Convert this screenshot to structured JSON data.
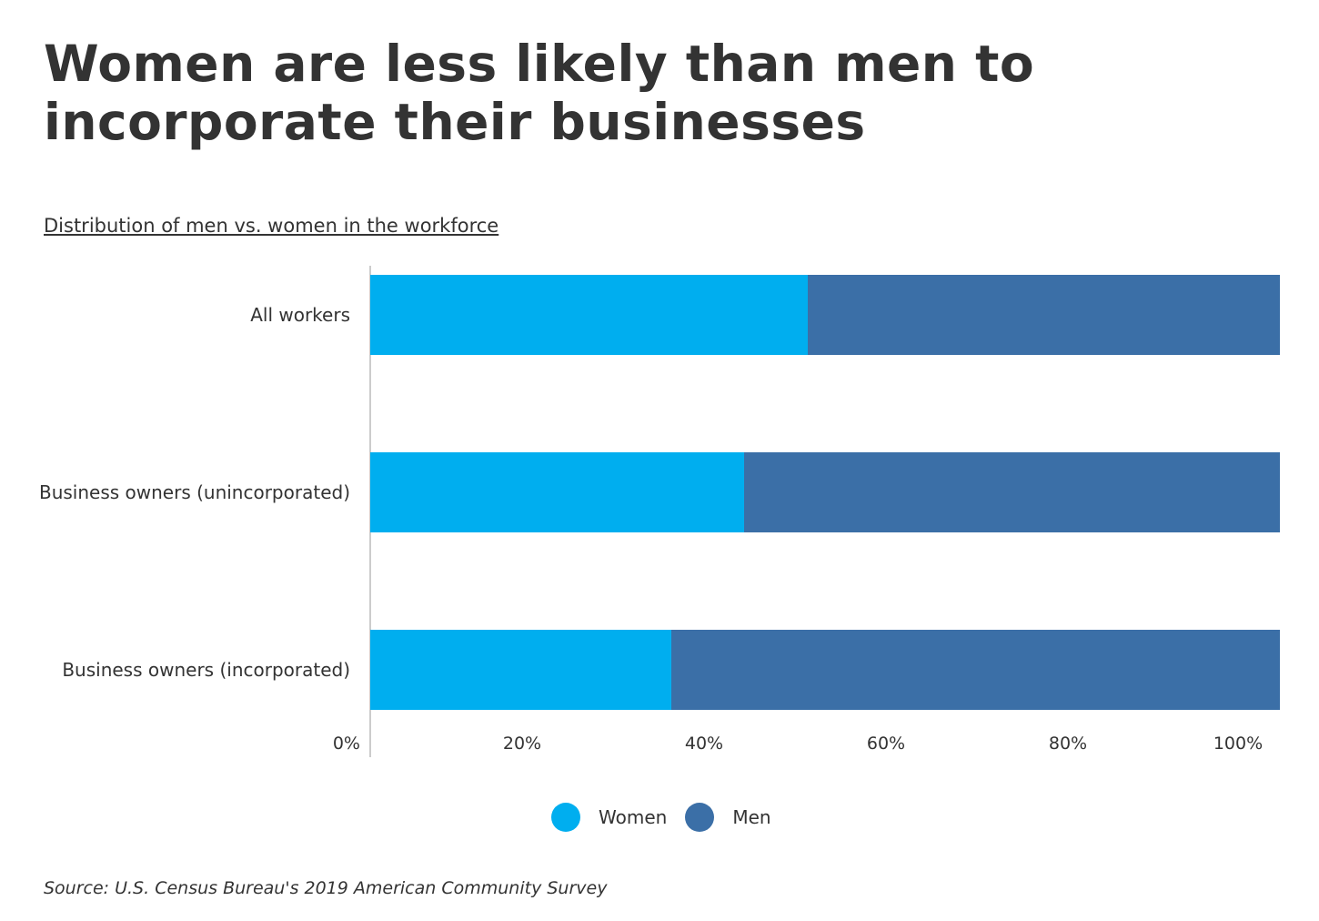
{
  "title": "Women are less likely than men to incorporate their businesses",
  "subtitle": "Distribution of men vs. women in the workforce",
  "source": "Source:  U.S. Census Bureau's 2019  American Community Survey",
  "chart_data": {
    "type": "bar",
    "orientation": "horizontal",
    "stacked": true,
    "categories": [
      "All workers",
      "Business owners (unincorporated)",
      "Business owners (incorporated)"
    ],
    "series": [
      {
        "name": "Women",
        "color": "#00aeef",
        "values": [
          48.1,
          41.1,
          33.1
        ]
      },
      {
        "name": "Men",
        "color": "#3b6fa7",
        "values": [
          51.9,
          58.9,
          66.9
        ]
      }
    ],
    "x_ticks": [
      "0%",
      "20%",
      "40%",
      "60%",
      "80%",
      "100%"
    ],
    "xlim": [
      0,
      100
    ],
    "legend": "bottom-center",
    "grid": false
  }
}
